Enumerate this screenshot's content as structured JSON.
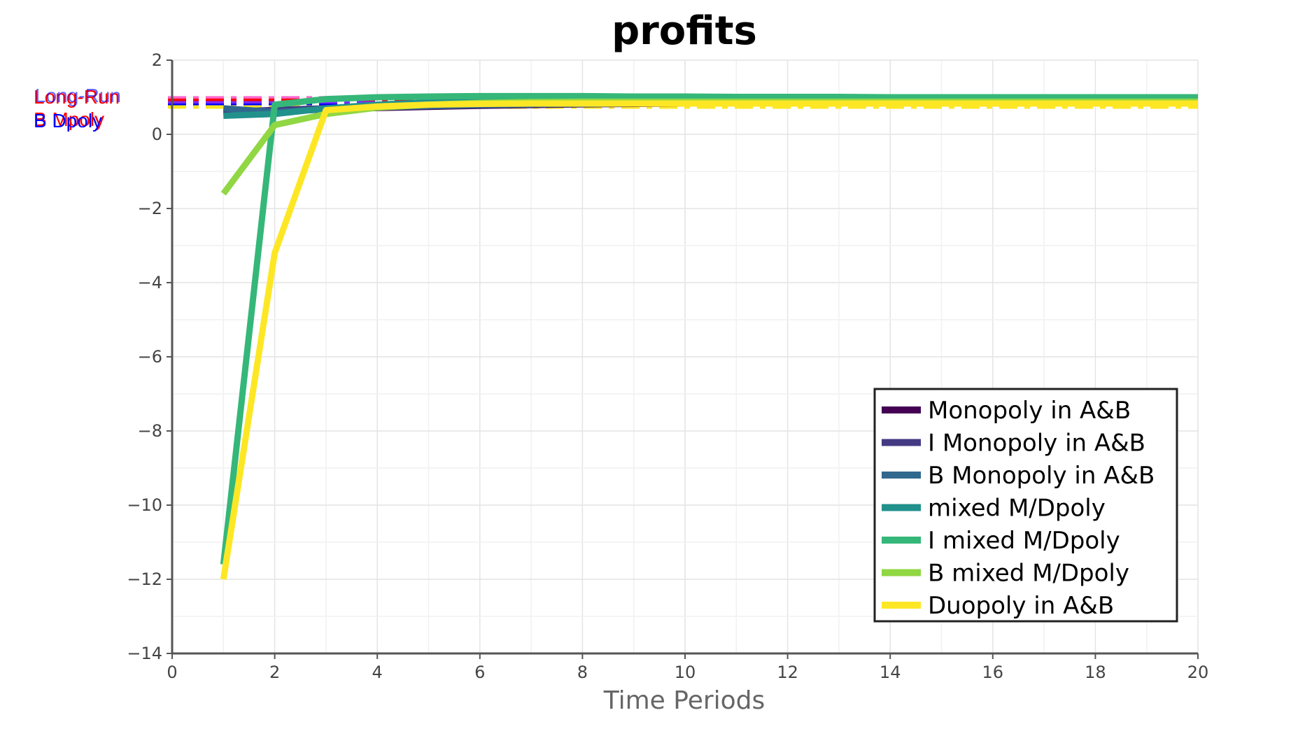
{
  "chart_data": {
    "type": "line",
    "title": "profits",
    "xlabel": "Time Periods",
    "ylabel": "",
    "xlim": [
      0,
      20
    ],
    "ylim": [
      -14,
      2
    ],
    "xticks": [
      0,
      2,
      4,
      6,
      8,
      10,
      12,
      14,
      16,
      18,
      20
    ],
    "yticks": [
      2,
      0,
      -2,
      -4,
      -6,
      -8,
      -10,
      -12,
      -14
    ],
    "xtick_labels": [
      "0",
      "2",
      "4",
      "6",
      "8",
      "10",
      "12",
      "14",
      "16",
      "18",
      "20"
    ],
    "ytick_labels": [
      "2",
      "0",
      "−2",
      "−4",
      "−6",
      "−8",
      "−10",
      "−12",
      "−14"
    ],
    "grid": true,
    "legend_position": "bottom-right",
    "x": [
      1,
      2,
      3,
      4,
      5,
      6,
      7,
      8,
      9,
      10,
      11,
      12,
      13,
      14,
      15,
      16,
      17,
      18,
      19,
      20
    ],
    "series": [
      {
        "name": "Monopoly in A&B",
        "color": "#440154",
        "values": [
          0.55,
          0.62,
          0.67,
          0.71,
          0.74,
          0.77,
          0.79,
          0.81,
          0.82,
          0.83,
          0.84,
          0.84,
          0.85,
          0.85,
          0.85,
          0.85,
          0.85,
          0.86,
          0.86,
          0.86
        ]
      },
      {
        "name": "I Monopoly in A&B",
        "color": "#443983",
        "values": [
          0.6,
          0.66,
          0.7,
          0.74,
          0.77,
          0.79,
          0.81,
          0.82,
          0.83,
          0.84,
          0.84,
          0.85,
          0.85,
          0.85,
          0.86,
          0.86,
          0.86,
          0.86,
          0.86,
          0.86
        ]
      },
      {
        "name": "B Monopoly in A&B",
        "color": "#31688e",
        "values": [
          0.7,
          0.6,
          0.68,
          0.73,
          0.76,
          0.79,
          0.81,
          0.82,
          0.83,
          0.84,
          0.84,
          0.85,
          0.85,
          0.85,
          0.86,
          0.86,
          0.86,
          0.86,
          0.86,
          0.86
        ]
      },
      {
        "name": "mixed M/Dpoly",
        "color": "#21918c",
        "values": [
          0.5,
          0.55,
          0.7,
          0.8,
          0.86,
          0.9,
          0.92,
          0.93,
          0.93,
          0.93,
          0.93,
          0.93,
          0.93,
          0.93,
          0.93,
          0.93,
          0.93,
          0.93,
          0.93,
          0.93
        ]
      },
      {
        "name": "I mixed M/Dpoly",
        "color": "#35b779",
        "values": [
          -11.6,
          0.8,
          0.95,
          1.0,
          1.02,
          1.03,
          1.03,
          1.03,
          1.02,
          1.02,
          1.01,
          1.01,
          1.01,
          1.0,
          1.0,
          1.0,
          1.0,
          1.0,
          1.0,
          1.0
        ]
      },
      {
        "name": "B mixed M/Dpoly",
        "color": "#90d743",
        "values": [
          -1.6,
          0.25,
          0.55,
          0.72,
          0.8,
          0.85,
          0.87,
          0.88,
          0.88,
          0.88,
          0.88,
          0.88,
          0.88,
          0.88,
          0.88,
          0.88,
          0.88,
          0.88,
          0.88,
          0.88
        ]
      },
      {
        "name": "Duopoly in A&B",
        "color": "#fde725",
        "values": [
          -12.0,
          -3.2,
          0.65,
          0.75,
          0.8,
          0.82,
          0.83,
          0.83,
          0.83,
          0.83,
          0.83,
          0.83,
          0.83,
          0.83,
          0.83,
          0.83,
          0.83,
          0.83,
          0.83,
          0.83
        ]
      }
    ],
    "reference_lines": [
      {
        "label": "Long-Run",
        "value": 0.87,
        "color": "#ff0000"
      },
      {
        "label": "B Mpoly",
        "value": 0.86,
        "color": "#ff0000"
      },
      {
        "label": "B Dpoly",
        "value": 0.83,
        "color": "#0000ff"
      }
    ],
    "annotation_text": [
      "Long-Run",
      "B Mpoly",
      "B Dpoly"
    ],
    "dashed_overlay": [
      {
        "value": 0.89,
        "color": "#ff66cc"
      },
      {
        "value": 0.87,
        "color": "#ff0000"
      },
      {
        "value": 0.85,
        "color": "#7a2cff"
      },
      {
        "value": 0.83,
        "color": "#0000ff"
      },
      {
        "value": 0.83,
        "color": "#fde725"
      }
    ]
  }
}
